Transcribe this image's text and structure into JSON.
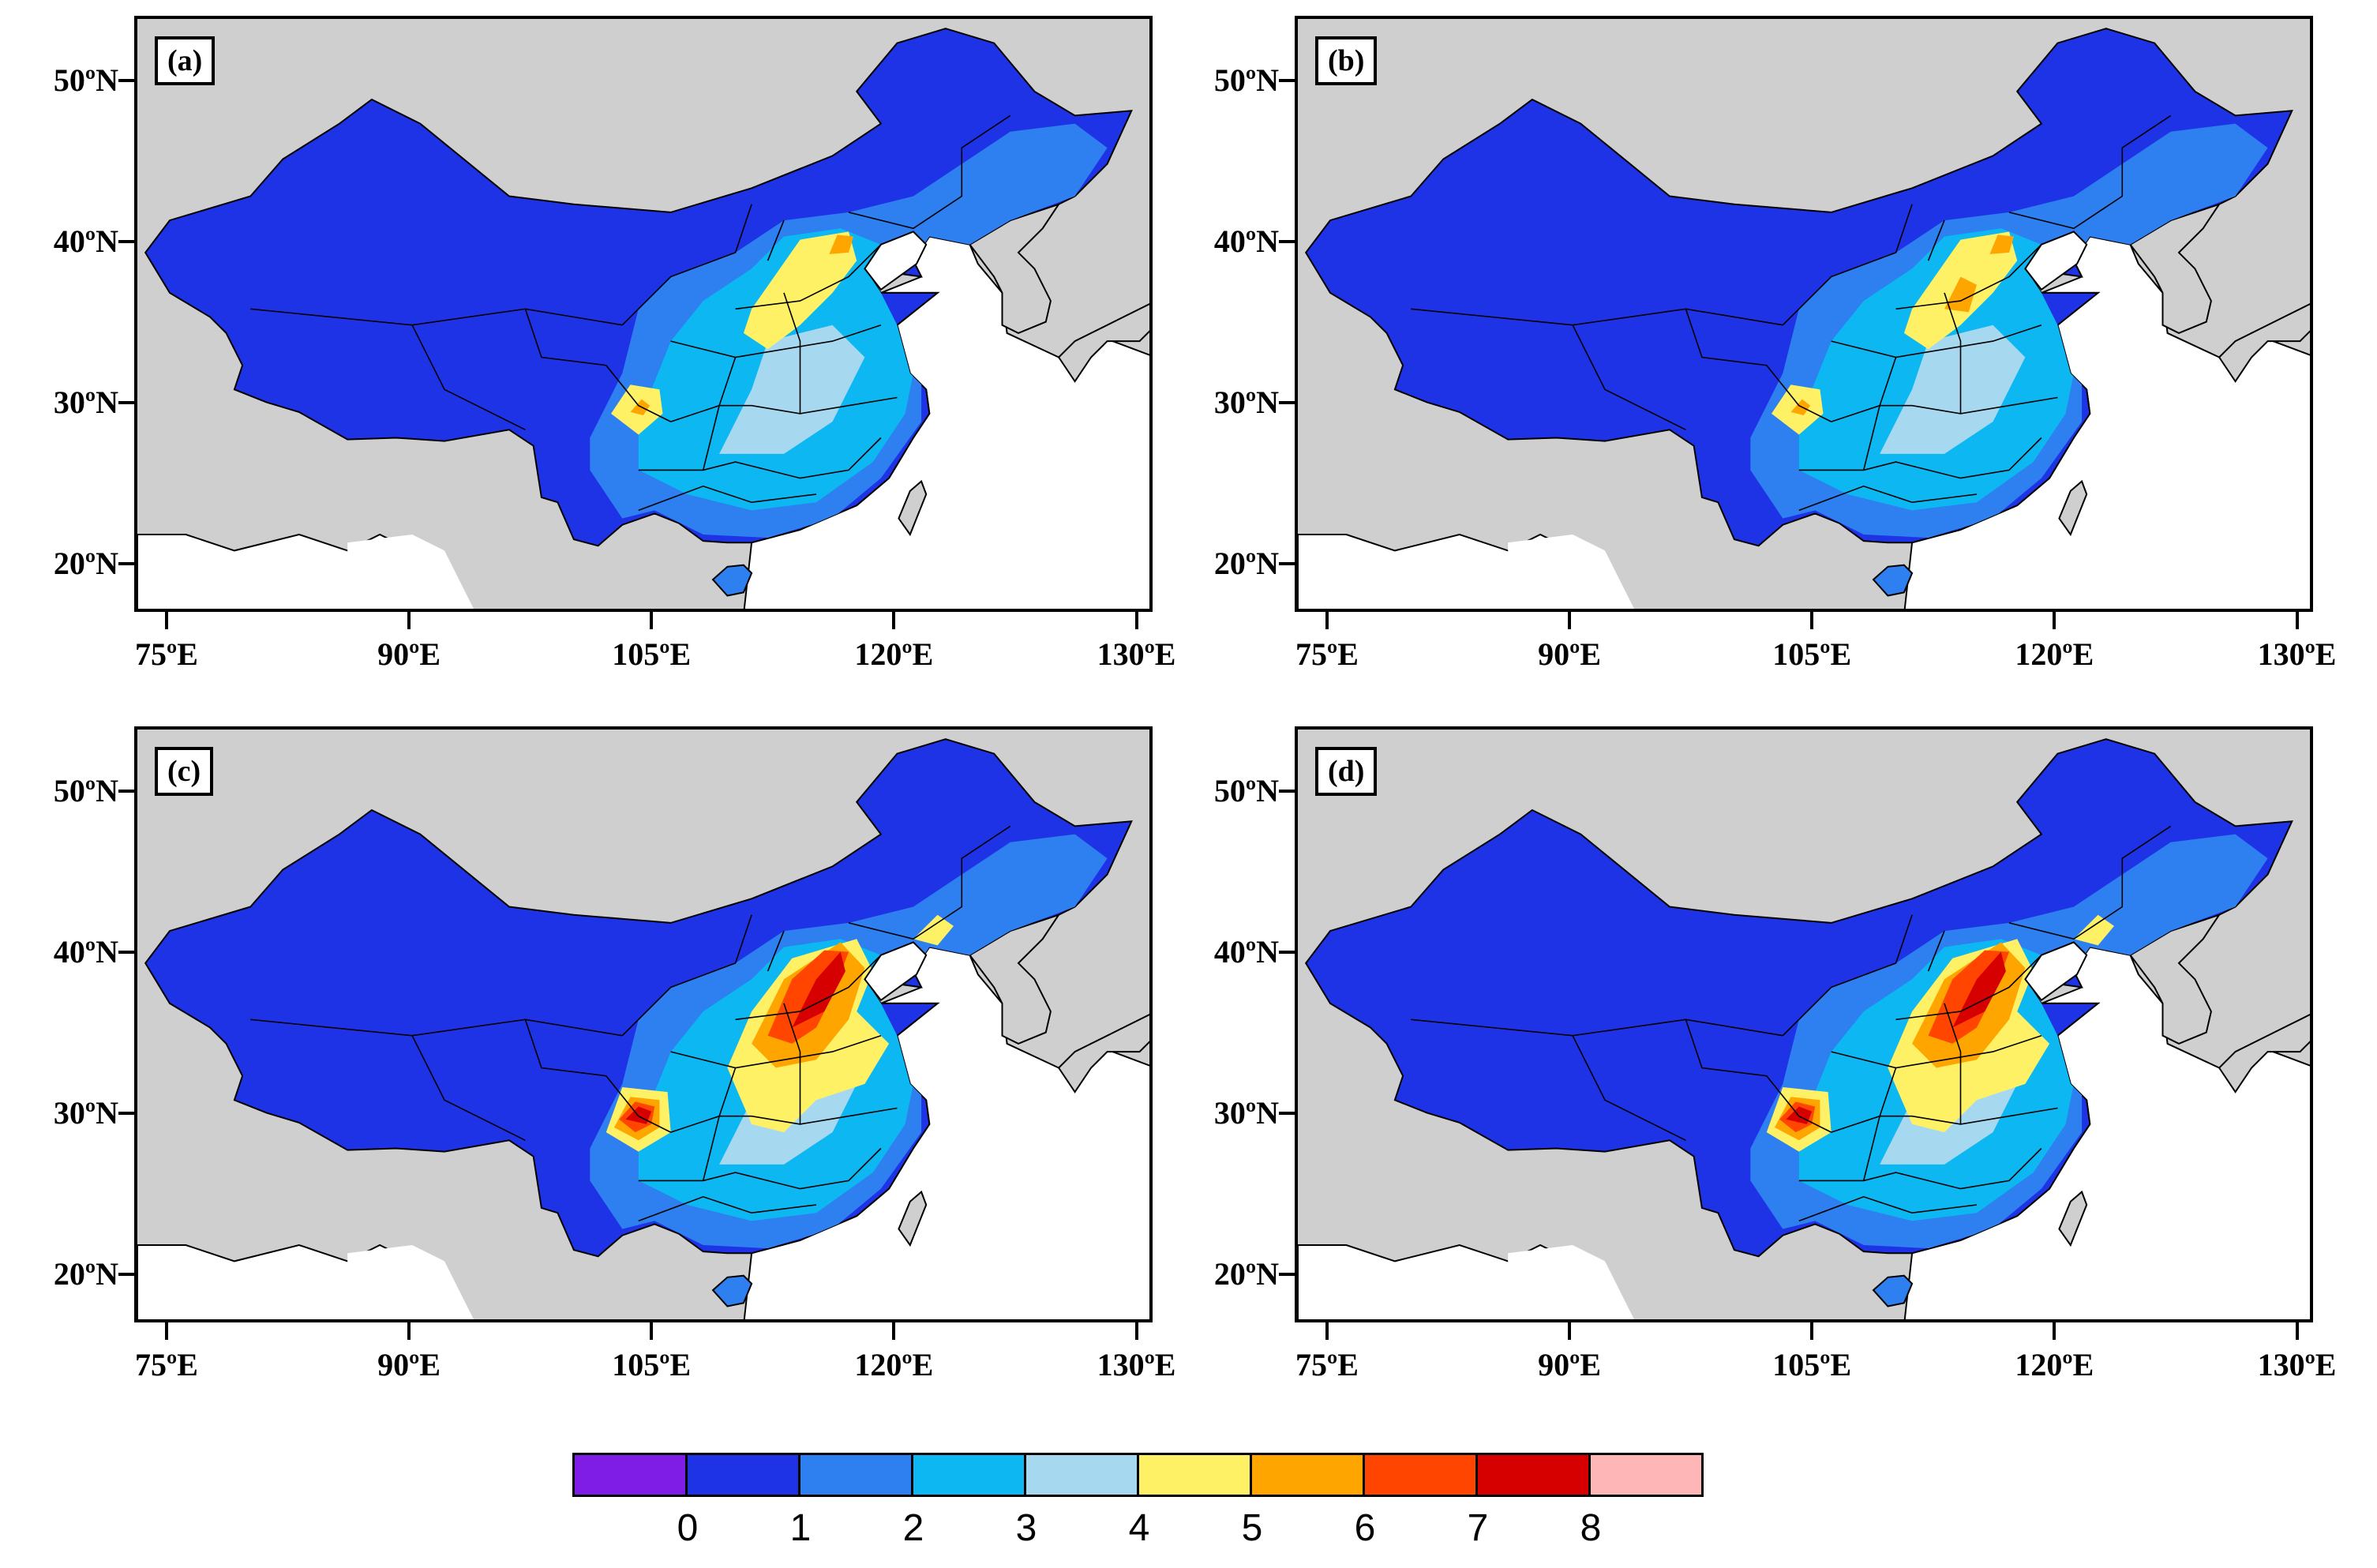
{
  "panels": [
    {
      "label": "(a)"
    },
    {
      "label": "(b)"
    },
    {
      "label": "(c)"
    },
    {
      "label": "(d)"
    }
  ],
  "axes": {
    "lat_labels": [
      "50ºN",
      "40ºN",
      "30ºN",
      "20ºN"
    ],
    "lon_labels": [
      "75ºE",
      "90ºE",
      "105ºE",
      "120ºE",
      "130ºE"
    ]
  },
  "colorbar": {
    "colors": [
      "#7f1de6",
      "#1e33e6",
      "#2e7ff0",
      "#0cb7f2",
      "#a6d8f0",
      "#fff165",
      "#ffa500",
      "#ff4500",
      "#d60000",
      "#ffb6b6"
    ],
    "tick_labels": [
      "0",
      "1",
      "2",
      "3",
      "4",
      "5",
      "6",
      "7",
      "8"
    ]
  },
  "colors": {
    "land_background": "#cfcfcf",
    "ocean": "#ffffff",
    "china_base": "#1e33e6"
  }
}
